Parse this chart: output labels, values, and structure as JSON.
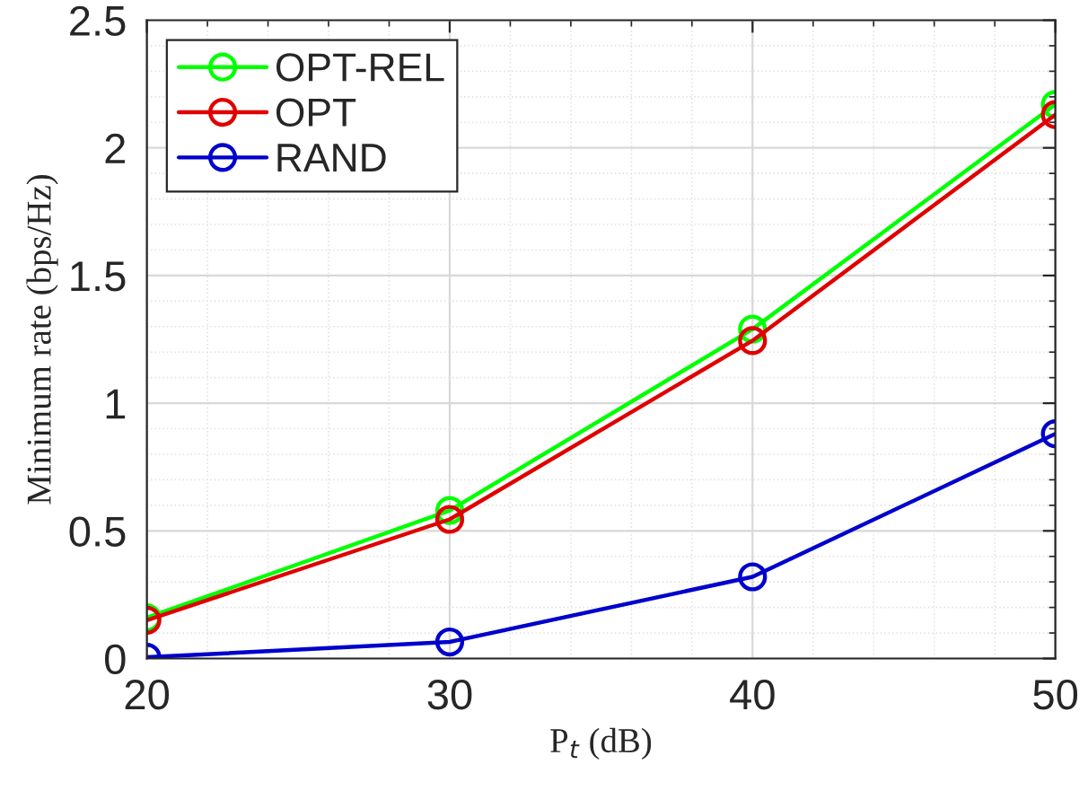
{
  "chart_data": {
    "type": "line",
    "xlabel": "P$_{t}$ (dB)",
    "ylabel": "Minimum rate (bps/Hz)",
    "x": [
      20,
      30,
      40,
      50
    ],
    "series": [
      {
        "name": "OPT-REL",
        "color": "#00ff00",
        "values": [
          0.16,
          0.58,
          1.29,
          2.17
        ]
      },
      {
        "name": "OPT",
        "color": "#e00000",
        "values": [
          0.15,
          0.545,
          1.245,
          2.13
        ]
      },
      {
        "name": "RAND",
        "color": "#0000cc",
        "values": [
          0.005,
          0.065,
          0.32,
          0.88
        ]
      }
    ],
    "xlim": [
      20,
      50
    ],
    "xticks": [
      20,
      30,
      40,
      50
    ],
    "ylim": [
      0,
      2.5
    ],
    "yticks": [
      0,
      0.5,
      1,
      1.5,
      2,
      2.5
    ],
    "grid": true,
    "legend": "top left",
    "marker": "circle",
    "line_style": "solid"
  }
}
